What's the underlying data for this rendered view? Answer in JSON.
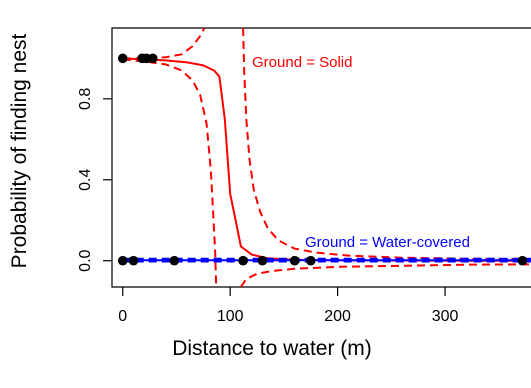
{
  "chart_data": {
    "type": "scatter",
    "title": "",
    "xlabel": "Distance to water  (m)",
    "ylabel": "Probability of finding nest",
    "xlim": [
      -10,
      380
    ],
    "ylim": [
      -0.13,
      1.15
    ],
    "x_ticks": [
      0,
      100,
      200,
      300
    ],
    "y_ticks": [
      0.0,
      0.4,
      0.8
    ],
    "y_tick_labels": [
      "0.0",
      "0.4",
      "0.8"
    ],
    "grid": false,
    "legend": "none",
    "colors": {
      "points": "#000000",
      "solid": "#ff0000",
      "water": "#0000ff",
      "axis": "#000000"
    },
    "points": [
      {
        "x": 0,
        "y": 1
      },
      {
        "x": 18,
        "y": 1
      },
      {
        "x": 22,
        "y": 1
      },
      {
        "x": 28,
        "y": 1
      },
      {
        "x": 0,
        "y": 0
      },
      {
        "x": 10,
        "y": 0
      },
      {
        "x": 48,
        "y": 0
      },
      {
        "x": 112,
        "y": 0
      },
      {
        "x": 130,
        "y": 0
      },
      {
        "x": 160,
        "y": 0
      },
      {
        "x": 175,
        "y": 0
      },
      {
        "x": 372,
        "y": 0
      }
    ],
    "series": [
      {
        "name": "Ground = Solid",
        "style": "solid",
        "color": "#ff0000",
        "x": [
          0,
          20,
          40,
          60,
          75,
          85,
          90,
          95,
          100,
          105,
          110,
          120,
          135,
          160,
          200,
          260,
          320,
          380
        ],
        "y": [
          1.0,
          0.995,
          0.99,
          0.98,
          0.965,
          0.94,
          0.91,
          0.7,
          0.33,
          0.2,
          0.07,
          0.03,
          0.012,
          0.005,
          0.002,
          0.001,
          0.0,
          0.0
        ]
      },
      {
        "name": "",
        "style": "dashed",
        "color": "#ff0000",
        "x": [
          0,
          20,
          40,
          55,
          65,
          72,
          76
        ],
        "y": [
          1.0,
          1.0,
          1.005,
          1.02,
          1.06,
          1.11,
          1.15
        ]
      },
      {
        "name": "",
        "style": "dashed",
        "color": "#ff0000",
        "x": [
          0,
          20,
          40,
          55,
          65,
          72,
          78,
          82,
          84,
          86,
          87
        ],
        "y": [
          0.995,
          0.985,
          0.97,
          0.94,
          0.89,
          0.82,
          0.68,
          0.45,
          0.25,
          0.05,
          -0.13
        ]
      },
      {
        "name": "",
        "style": "dashed",
        "color": "#ff0000",
        "x": [
          112,
          113,
          115,
          118,
          122,
          128,
          135,
          145,
          160,
          180,
          210,
          260,
          320,
          380
        ],
        "y": [
          1.15,
          0.95,
          0.7,
          0.5,
          0.35,
          0.24,
          0.16,
          0.1,
          0.06,
          0.04,
          0.025,
          0.015,
          0.01,
          0.008
        ]
      },
      {
        "name": "",
        "style": "dashed",
        "color": "#ff0000",
        "x": [
          110,
          115,
          125,
          140,
          160,
          200,
          260,
          320,
          380
        ],
        "y": [
          -0.13,
          -0.09,
          -0.065,
          -0.05,
          -0.04,
          -0.03,
          -0.025,
          -0.02,
          -0.018
        ]
      },
      {
        "name": "Ground = Water-covered",
        "style": "solid",
        "color": "#0000ff",
        "x": [
          0,
          380
        ],
        "y": [
          0.002,
          0.002
        ]
      },
      {
        "name": "",
        "style": "dashed",
        "color": "#0000ff",
        "x": [
          0,
          380
        ],
        "y": [
          0.01,
          0.01
        ]
      },
      {
        "name": "",
        "style": "dashed",
        "color": "#0000ff",
        "x": [
          0,
          380
        ],
        "y": [
          -0.004,
          -0.004
        ]
      }
    ],
    "annotations": [
      {
        "text": "Ground = Solid",
        "color": "#ff0000"
      },
      {
        "text": "Ground = Water-covered",
        "color": "#0000ff"
      }
    ]
  }
}
